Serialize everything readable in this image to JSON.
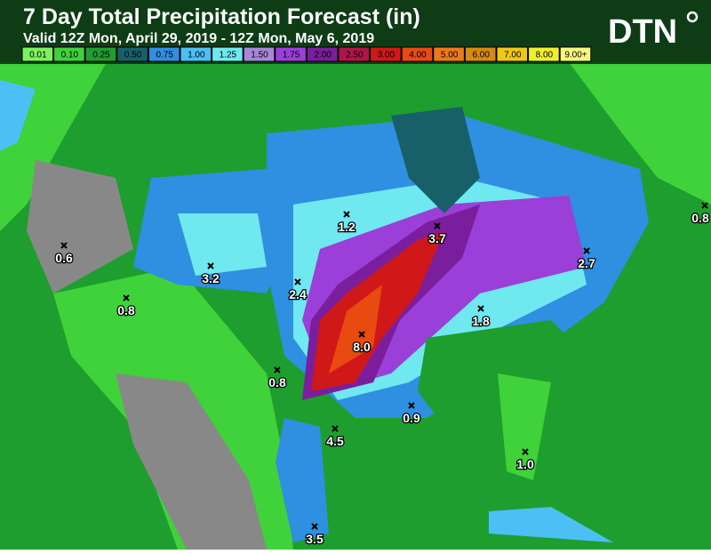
{
  "header": {
    "title": "7 Day Total Precipitation Forecast (in)",
    "subtitle": "Valid 12Z Mon, April 29, 2019 - 12Z Mon, May 6, 2019",
    "logo": "DTN"
  },
  "legend": [
    {
      "label": "0.01",
      "color": "#7cf25a"
    },
    {
      "label": "0.10",
      "color": "#3fd23a"
    },
    {
      "label": "0.25",
      "color": "#1e9e2e"
    },
    {
      "label": "0.50",
      "color": "#17606a"
    },
    {
      "label": "0.75",
      "color": "#2f8fe0"
    },
    {
      "label": "1.00",
      "color": "#4cc0f5"
    },
    {
      "label": "1.25",
      "color": "#6fe8f0"
    },
    {
      "label": "1.50",
      "color": "#a886d8"
    },
    {
      "label": "1.75",
      "color": "#9a3fd8"
    },
    {
      "label": "2.00",
      "color": "#7a1e9e"
    },
    {
      "label": "2.50",
      "color": "#b0154a"
    },
    {
      "label": "3.00",
      "color": "#d01818"
    },
    {
      "label": "4.00",
      "color": "#e84a10"
    },
    {
      "label": "5.00",
      "color": "#f0781a"
    },
    {
      "label": "6.00",
      "color": "#d88a10"
    },
    {
      "label": "7.00",
      "color": "#f0c814"
    },
    {
      "label": "8.00",
      "color": "#f0ee30"
    },
    {
      "label": "9.00+",
      "color": "#f8f880"
    }
  ],
  "points": [
    {
      "label": "0.6"
    },
    {
      "label": "0.8"
    },
    {
      "label": "3.2"
    },
    {
      "label": "2.4"
    },
    {
      "label": "1.2"
    },
    {
      "label": "3.7"
    },
    {
      "label": "2.7"
    },
    {
      "label": "0.8"
    },
    {
      "label": "1.8"
    },
    {
      "label": "8.0"
    },
    {
      "label": "0.8"
    },
    {
      "label": "0.9"
    },
    {
      "label": "4.5"
    },
    {
      "label": "1.0"
    },
    {
      "label": "3.5"
    }
  ]
}
